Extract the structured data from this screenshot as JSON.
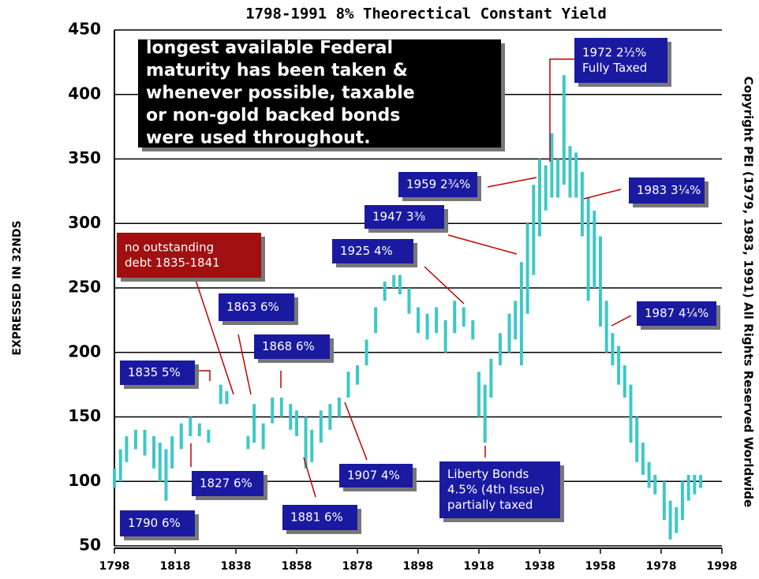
{
  "chart_data": {
    "type": "range",
    "title": "1798-1991 8% Theorectical Constant Yield",
    "y_label": "EXPRESSED IN 32NDS",
    "side_text": "Copyright PEI (1979, 1983, 1991) All Rights Reserved Worldwide",
    "color": "#3cc8c8",
    "x": [
      1798,
      1800,
      1802,
      1805,
      1808,
      1811,
      1813,
      1815,
      1817,
      1820,
      1823,
      1826,
      1829,
      1833,
      1835,
      1842,
      1844,
      1847,
      1850,
      1853,
      1856,
      1858,
      1861,
      1863,
      1866,
      1869,
      1872,
      1875,
      1878,
      1881,
      1884,
      1887,
      1890,
      1892,
      1895,
      1898,
      1901,
      1904,
      1907,
      1910,
      1913,
      1916,
      1918,
      1920,
      1922,
      1925,
      1928,
      1930,
      1932,
      1934,
      1936,
      1938,
      1940,
      1942,
      1944,
      1946,
      1948,
      1950,
      1952,
      1954,
      1956,
      1958,
      1960,
      1962,
      1964,
      1966,
      1968,
      1970,
      1972,
      1974,
      1976,
      1979,
      1981,
      1983,
      1985,
      1987,
      1989,
      1991
    ],
    "low": [
      95,
      100,
      115,
      125,
      120,
      110,
      100,
      85,
      110,
      125,
      135,
      135,
      130,
      160,
      160,
      125,
      130,
      125,
      145,
      150,
      140,
      135,
      110,
      115,
      130,
      140,
      150,
      165,
      175,
      190,
      215,
      240,
      250,
      245,
      230,
      215,
      210,
      215,
      200,
      215,
      220,
      210,
      150,
      130,
      165,
      190,
      200,
      210,
      190,
      230,
      260,
      290,
      310,
      320,
      320,
      330,
      320,
      320,
      290,
      240,
      250,
      220,
      200,
      190,
      175,
      165,
      130,
      115,
      105,
      95,
      90,
      70,
      55,
      60,
      70,
      85,
      90,
      95
    ],
    "high": [
      110,
      125,
      135,
      140,
      140,
      135,
      130,
      125,
      135,
      145,
      150,
      145,
      140,
      175,
      170,
      135,
      160,
      145,
      165,
      165,
      160,
      155,
      150,
      140,
      155,
      160,
      165,
      185,
      190,
      210,
      235,
      255,
      260,
      260,
      250,
      235,
      230,
      235,
      225,
      240,
      235,
      225,
      185,
      175,
      195,
      215,
      230,
      240,
      270,
      300,
      330,
      350,
      345,
      370,
      350,
      415,
      360,
      355,
      340,
      320,
      310,
      290,
      240,
      215,
      205,
      190,
      175,
      150,
      130,
      115,
      105,
      100,
      85,
      80,
      100,
      105,
      105,
      105
    ],
    "xlim": [
      1798,
      1998
    ],
    "ylim": [
      50,
      450
    ],
    "xticks": [
      1798,
      1818,
      1838,
      1858,
      1878,
      1898,
      1918,
      1938,
      1958,
      1978,
      1998
    ],
    "yticks": [
      50,
      100,
      150,
      200,
      250,
      300,
      350,
      400,
      450
    ],
    "grid": true,
    "annotations": [
      {
        "lines": [
          "longest available Federal",
          "maturity has been taken &",
          "whenever possible, taxable",
          "or non-gold backed bonds",
          "were used throughout."
        ]
      },
      {
        "lines": [
          "1972 2½%",
          "Fully Taxed"
        ]
      },
      {
        "lines": [
          "1959 2¾%"
        ]
      },
      {
        "lines": [
          "1983 3¼%"
        ]
      },
      {
        "lines": [
          "1947 3⅜"
        ]
      },
      {
        "lines": [
          "1925 4%"
        ]
      },
      {
        "lines": [
          "1987 4¼%"
        ]
      },
      {
        "lines": [
          "no outstanding",
          "debt 1835-1841"
        ]
      },
      {
        "lines": [
          "1863 6%"
        ]
      },
      {
        "lines": [
          "1868 6%"
        ]
      },
      {
        "lines": [
          "1835 5%"
        ]
      },
      {
        "lines": [
          "1827 6%"
        ]
      },
      {
        "lines": [
          "1790 6%"
        ]
      },
      {
        "lines": [
          "1881 6%"
        ]
      },
      {
        "lines": [
          "1907 4%"
        ]
      },
      {
        "lines": [
          "Liberty Bonds",
          "4.5% (4th Issue)",
          "partially taxed"
        ]
      }
    ]
  }
}
